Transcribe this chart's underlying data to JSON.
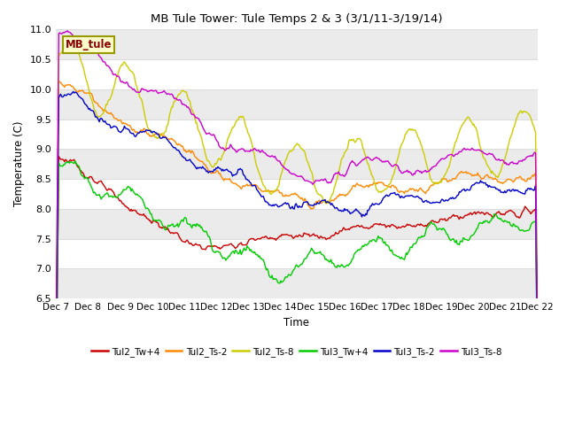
{
  "title": "MB Tule Tower: Tule Temps 2 & 3 (3/1/11-3/19/14)",
  "xlabel": "Time",
  "ylabel": "Temperature (C)",
  "ylim": [
    6.5,
    11.0
  ],
  "yticks": [
    6.5,
    7.0,
    7.5,
    8.0,
    8.5,
    9.0,
    9.5,
    10.0,
    10.5,
    11.0
  ],
  "xtick_labels": [
    "Dec 7",
    "Dec 8",
    "Dec 9",
    "Dec 10",
    "Dec 11",
    "Dec 12",
    "Dec 13",
    "Dec 14",
    "Dec 15",
    "Dec 16",
    "Dec 17",
    "Dec 18",
    "Dec 19",
    "Dec 20",
    "Dec 21",
    "Dec 22"
  ],
  "series_colors": {
    "Tul2_Tw+4": "#cc0000",
    "Tul2_Ts-2": "#ff8800",
    "Tul2_Ts-8": "#cccc00",
    "Tul3_Tw+4": "#00cc00",
    "Tul3_Ts-2": "#0000cc",
    "Tul3_Ts-8": "#cc00cc"
  },
  "fig_bg": "#ffffff",
  "plot_bg": "#ffffff",
  "label_box_text": "MB_tule",
  "label_box_bg": "#ffffcc",
  "label_box_border": "#999900",
  "label_box_text_color": "#880000",
  "n_points": 500,
  "grid_color": "#dddddd",
  "band_color": "#ebebeb"
}
